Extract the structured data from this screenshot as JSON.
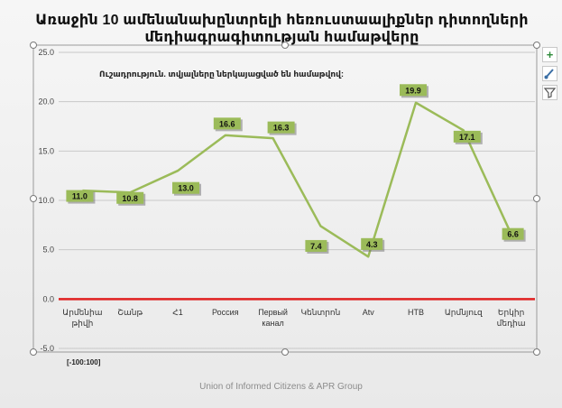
{
  "chart_data": {
    "type": "line",
    "title_line1": "Առաջին 10 ամենանախընտրելի հեռուստաալիքներ դիտողների",
    "title_line2": "մեդիագրագիտության համաթվերը",
    "annotation": "Ուշադրություն. տվյալները ներկայացված են համաթվով:",
    "range_note": "[-100:100]",
    "categories": [
      [
        "Արմենիա",
        "թիվի"
      ],
      [
        "Շանթ"
      ],
      [
        "Հ1"
      ],
      [
        "Россия"
      ],
      [
        "Первый",
        "канал"
      ],
      [
        "Կենտրոն"
      ],
      [
        "Atv"
      ],
      [
        "НТВ"
      ],
      [
        "Արմնյուզ"
      ],
      [
        "Երկիր",
        "մեդիա"
      ]
    ],
    "values": [
      11.0,
      10.8,
      13.0,
      16.6,
      16.3,
      7.4,
      4.3,
      19.9,
      17.1,
      6.6
    ],
    "data_labels": [
      "11.0",
      "10.8",
      "13.0",
      "16.6",
      "16.3",
      "7.4",
      "4.3",
      "19.9",
      "17.1",
      "6.6"
    ],
    "y_ticks": [
      "25.0",
      "20.0",
      "15.0",
      "10.0",
      "5.0",
      "0.0",
      "-5.0"
    ],
    "ylim": [
      -5,
      25
    ],
    "grid": true,
    "line_color": "#9bbb59",
    "label_bg_color": "#9bbb59",
    "zero_line_color": "#e02020"
  },
  "toolbar": {
    "add_icon": "plus-icon",
    "style_icon": "brush-icon",
    "filter_icon": "filter-icon"
  },
  "source": "Union of Informed Citizens & APR Group"
}
